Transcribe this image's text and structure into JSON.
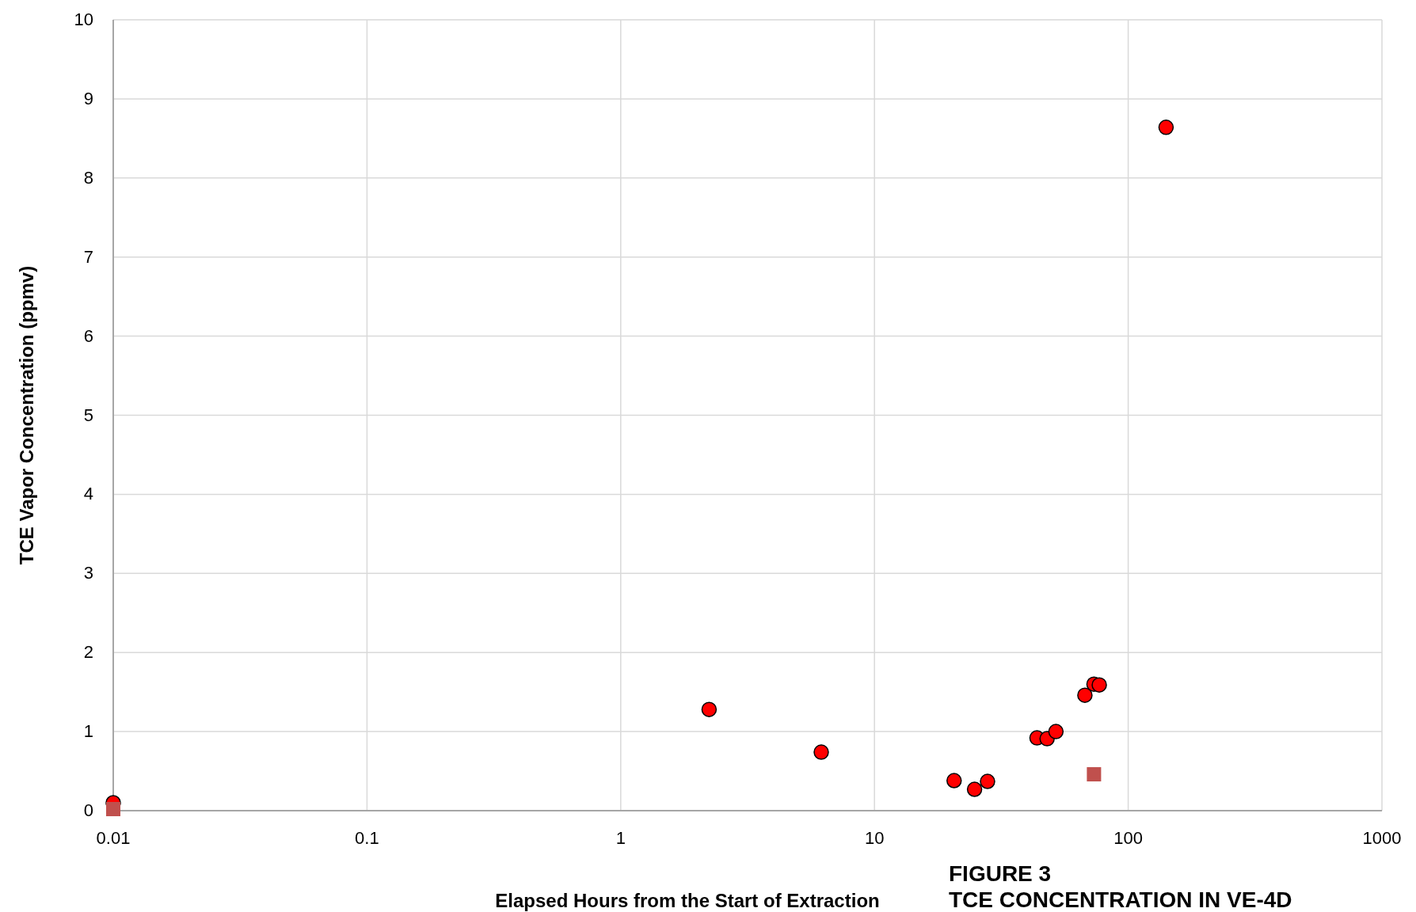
{
  "chart_data": {
    "type": "scatter",
    "xlabel": "Elapsed Hours from the Start of Extraction",
    "ylabel": "TCE Vapor Concentration (ppmv)",
    "annotations": [
      "FIGURE 3",
      "TCE CONCENTRATION IN VE-4D"
    ],
    "log": "x",
    "grid": true,
    "xlim": [
      0.01,
      1000
    ],
    "xticks": [
      0.01,
      0.1,
      1,
      10,
      100,
      1000
    ],
    "ylim": [
      0,
      10
    ],
    "yticks": [
      0,
      1,
      2,
      3,
      4,
      5,
      6,
      7,
      8,
      9,
      10
    ],
    "series": [
      {
        "color": "#ff0000",
        "marker": "circle",
        "x": [
          0.01,
          2.23,
          6.17,
          20.6,
          24.8,
          27.9,
          43.7,
          47.9,
          51.9,
          67.5,
          73.3,
          76.9,
          141
        ],
        "values": [
          0.1,
          1.28,
          0.74,
          0.38,
          0.27,
          0.37,
          0.92,
          0.91,
          1.0,
          1.46,
          1.6,
          1.59,
          8.64
        ]
      },
      {
        "color": "#c0504d",
        "marker": "square",
        "x": [
          0.01,
          73.3
        ],
        "values": [
          0.02,
          0.46
        ]
      }
    ]
  }
}
